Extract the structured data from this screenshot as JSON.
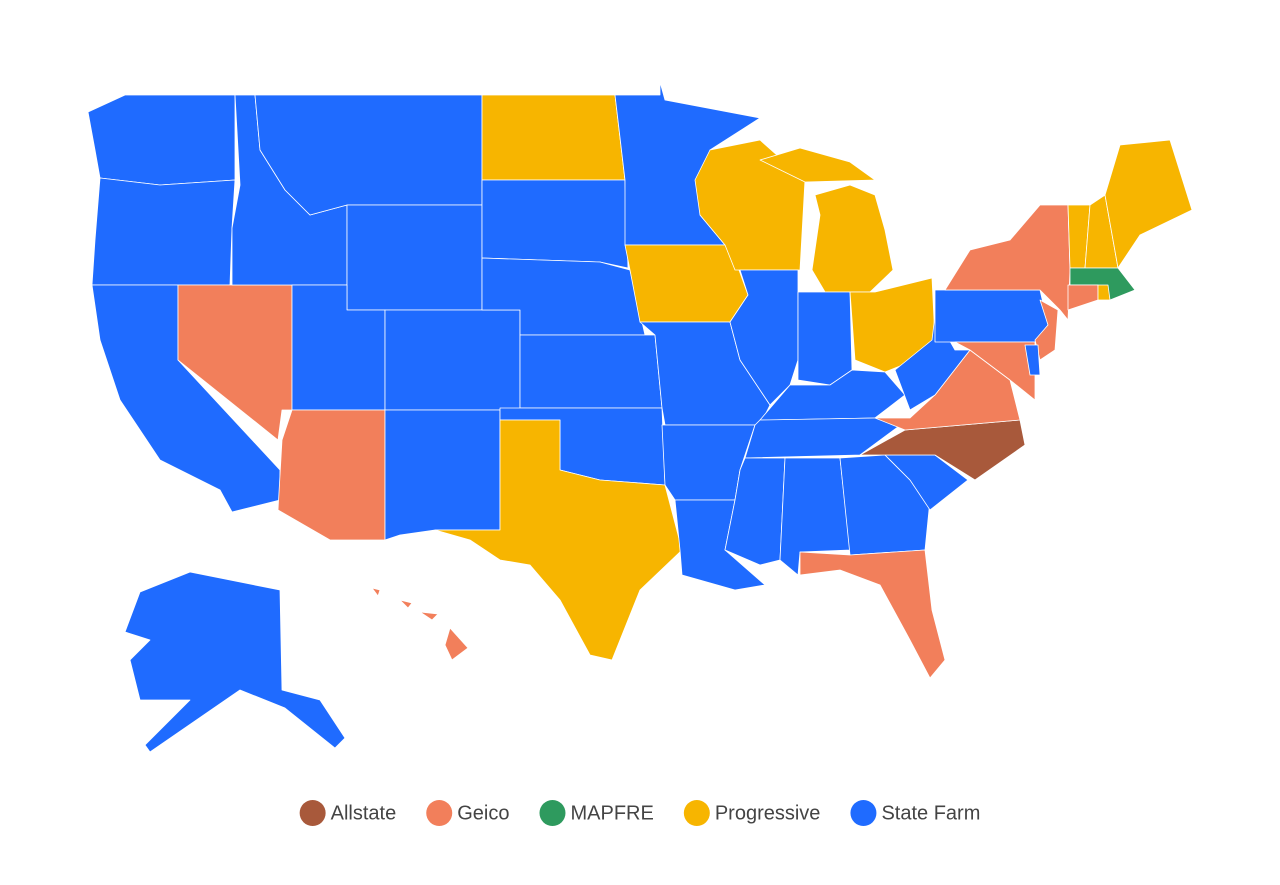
{
  "chart_data": {
    "type": "map",
    "series": [
      {
        "name": "Allstate",
        "color": "#a8593b"
      },
      {
        "name": "Geico",
        "color": "#f27f5b"
      },
      {
        "name": "MAPFRE",
        "color": "#2e9a5e"
      },
      {
        "name": "Progressive",
        "color": "#f7b500"
      },
      {
        "name": "State Farm",
        "color": "#1f6bff"
      }
    ],
    "legend": "bottom"
  }
}
